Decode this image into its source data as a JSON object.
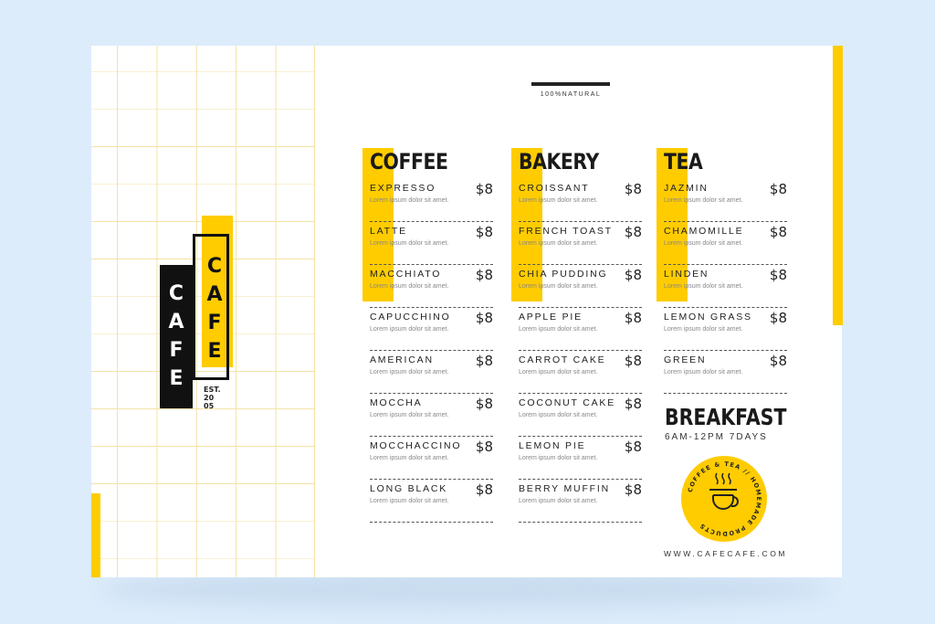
{
  "brand": {
    "left": "CAFE",
    "right": "CAFE",
    "est": "EST.",
    "year1": "20",
    "year2": "05"
  },
  "tagline": "100%NATURAL",
  "colors": {
    "accent": "#ffcc00",
    "ink": "#111111",
    "background": "#dcecfb"
  },
  "sections": [
    {
      "title": "COFFEE",
      "items": [
        {
          "name": "EXPRESSO",
          "price": "$8",
          "desc": "Lorem ipsum dolor sit amet."
        },
        {
          "name": "LATTE",
          "price": "$8",
          "desc": "Lorem ipsum dolor sit amet."
        },
        {
          "name": "MACCHIATO",
          "price": "$8",
          "desc": "Lorem ipsum dolor sit amet."
        },
        {
          "name": "CAPUCCHINO",
          "price": "$8",
          "desc": "Lorem ipsum dolor sit amet."
        },
        {
          "name": "AMERICAN",
          "price": "$8",
          "desc": "Lorem ipsum dolor sit amet."
        },
        {
          "name": "MOCCHA",
          "price": "$8",
          "desc": "Lorem ipsum dolor sit amet."
        },
        {
          "name": "MOCCHACCINO",
          "price": "$8",
          "desc": "Lorem ipsum dolor sit amet."
        },
        {
          "name": "LONG BLACK",
          "price": "$8",
          "desc": "Lorem ipsum dolor sit amet."
        }
      ]
    },
    {
      "title": "BAKERY",
      "items": [
        {
          "name": "CROISSANT",
          "price": "$8",
          "desc": "Lorem ipsum dolor sit amet."
        },
        {
          "name": "FRENCH TOAST",
          "price": "$8",
          "desc": "Lorem ipsum dolor sit amet."
        },
        {
          "name": "CHIA PUDDING",
          "price": "$8",
          "desc": "Lorem ipsum dolor sit amet."
        },
        {
          "name": "APPLE PIE",
          "price": "$8",
          "desc": "Lorem ipsum dolor sit amet."
        },
        {
          "name": "CARROT CAKE",
          "price": "$8",
          "desc": "Lorem ipsum dolor sit amet."
        },
        {
          "name": "COCONUT CAKE",
          "price": "$8",
          "desc": "Lorem ipsum dolor sit amet."
        },
        {
          "name": "LEMON PIE",
          "price": "$8",
          "desc": "Lorem ipsum dolor sit amet."
        },
        {
          "name": "BERRY MUFFIN",
          "price": "$8",
          "desc": "Lorem ipsum dolor sit amet."
        }
      ]
    },
    {
      "title": "TEA",
      "items": [
        {
          "name": "JAZMIN",
          "price": "$8",
          "desc": "Lorem ipsum dolor sit amet."
        },
        {
          "name": "CHAMOMILLE",
          "price": "$8",
          "desc": "Lorem ipsum dolor sit amet."
        },
        {
          "name": "LINDEN",
          "price": "$8",
          "desc": "Lorem ipsum dolor sit amet."
        },
        {
          "name": "LEMON GRASS",
          "price": "$8",
          "desc": "Lorem ipsum dolor sit amet."
        },
        {
          "name": "GREEN",
          "price": "$8",
          "desc": "Lorem ipsum dolor sit amet."
        }
      ]
    }
  ],
  "breakfast": {
    "title": "BREAKFAST",
    "hours": "6AM-12PM 7DAYS"
  },
  "badge": {
    "text": "COFFEE & TEA // HOMEMADE PRODUCTS",
    "icon": "coffee-cup-icon"
  },
  "website": "WWW.CAFECAFE.COM"
}
